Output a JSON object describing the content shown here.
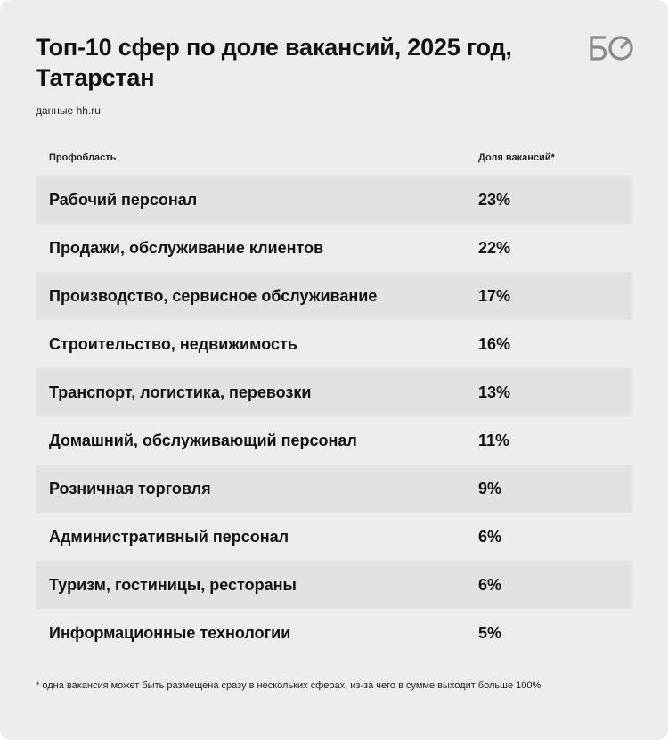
{
  "header": {
    "title": "Топ-10 сфер по доле вакансий, 2025 год, Татарстан",
    "source": "данные hh.ru",
    "logo_text": "БО"
  },
  "table": {
    "column_headers": [
      "Профобласть",
      "Доля вакансий*"
    ]
  },
  "chart_data": {
    "type": "table",
    "title": "Топ-10 сфер по доле вакансий, 2025 год, Татарстан",
    "columns": [
      "Профобласть",
      "Доля вакансий*"
    ],
    "rows": [
      {
        "category": "Рабочий персонал",
        "value": 23,
        "label": "23%"
      },
      {
        "category": "Продажи, обслуживание клиентов",
        "value": 22,
        "label": "22%"
      },
      {
        "category": "Производство, сервисное обслуживание",
        "value": 17,
        "label": "17%"
      },
      {
        "category": "Строительство, недвижимость",
        "value": 16,
        "label": "16%"
      },
      {
        "category": "Транспорт, логистика, перевозки",
        "value": 13,
        "label": "13%"
      },
      {
        "category": "Домашний, обслуживающий персонал",
        "value": 11,
        "label": "11%"
      },
      {
        "category": "Розничная торговля",
        "value": 9,
        "label": "9%"
      },
      {
        "category": "Административный персонал",
        "value": 6,
        "label": "6%"
      },
      {
        "category": "Туризм, гостиницы, рестораны",
        "value": 6,
        "label": "6%"
      },
      {
        "category": "Информационные технологии",
        "value": 5,
        "label": "5%"
      }
    ]
  },
  "footnote": "* одна вакансия может быть размещена сразу в нескольких сферах, из-за чего в сумме выходит больше 100%",
  "colors": {
    "background": "#ededed",
    "row_shade": "#e2e2e2",
    "text": "#111111",
    "logo": "#8a8a8a"
  }
}
